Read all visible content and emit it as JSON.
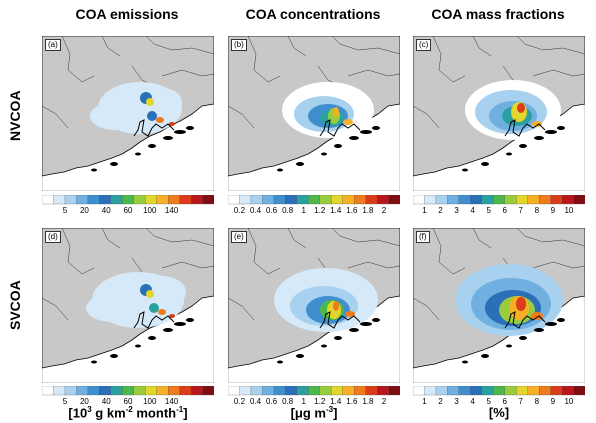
{
  "columns": [
    {
      "title": "COA emissions",
      "unit_prefix": "[10",
      "unit_rest_1": " g km",
      "unit_rest_2": " month",
      "unit_sup_a": "3",
      "unit_sup_b": "-2",
      "unit_sup_c": "-1",
      "unit_close": "]"
    },
    {
      "title": "COA concentrations",
      "unit_text": "[μg m",
      "unit_sup": "-3",
      "unit_close": "]"
    },
    {
      "title": "COA mass fractions",
      "unit_text": "[%]"
    }
  ],
  "rows": [
    {
      "label": "NVCOA",
      "panels": [
        "(a)",
        "(b)",
        "(c)"
      ]
    },
    {
      "label": "SVCOA",
      "panels": [
        "(d)",
        "(e)",
        "(f)"
      ]
    }
  ],
  "colorbars": [
    {
      "ticks": [
        "5",
        "20",
        "40",
        "60",
        "100",
        "140"
      ]
    },
    {
      "ticks": [
        "0.2",
        "0.4",
        "0.6",
        "0.8",
        "1",
        "1.2",
        "1.4",
        "1.6",
        "1.8",
        "2"
      ]
    },
    {
      "ticks": [
        "1",
        "2",
        "3",
        "4",
        "5",
        "6",
        "7",
        "8",
        "9",
        "10"
      ]
    }
  ],
  "palette": [
    "#ffffff",
    "#d6e9f8",
    "#a8d0ef",
    "#6fb0e0",
    "#3f8fcf",
    "#2a6fb8",
    "#2aa0a0",
    "#4cb84c",
    "#98cc3c",
    "#e2d52b",
    "#f5b026",
    "#ef7b1d",
    "#dd3c1a",
    "#b8161b",
    "#7f0e12"
  ],
  "land_color": "#c8c8c8"
}
